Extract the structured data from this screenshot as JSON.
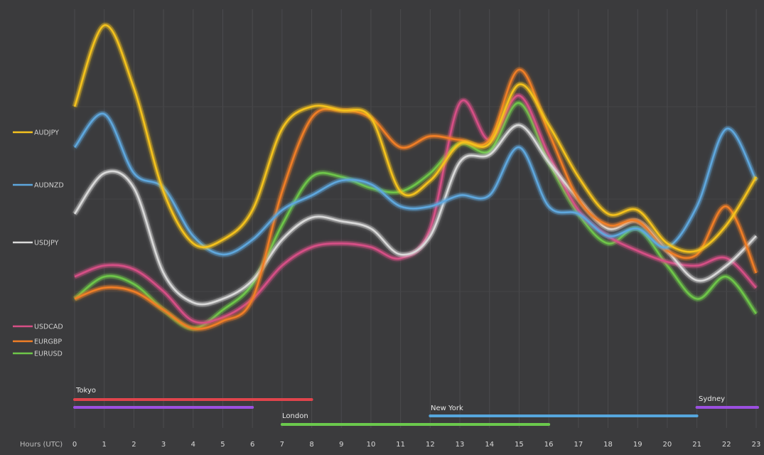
{
  "chart_data": {
    "type": "line",
    "x": [
      0,
      1,
      2,
      3,
      4,
      5,
      6,
      7,
      8,
      9,
      10,
      11,
      12,
      13,
      14,
      15,
      16,
      17,
      18,
      19,
      20,
      21,
      22,
      23
    ],
    "xlabel": "Hours (UTC)",
    "xlim": [
      0,
      23
    ],
    "ylim": [
      0,
      100
    ],
    "grid": "vertical",
    "legend_position": "left",
    "series": [
      {
        "name": "AUDJPY",
        "color": "#f4c21f",
        "values": [
          75,
          97,
          80,
          52,
          38,
          39,
          47,
          69,
          75,
          74,
          72,
          52,
          55,
          65,
          65,
          81,
          70,
          56,
          46,
          47,
          38,
          36,
          43,
          56
        ]
      },
      {
        "name": "AUDNZD",
        "color": "#5ea7dd",
        "values": [
          64,
          73,
          57,
          53,
          40,
          35,
          39,
          47,
          51,
          55,
          54,
          48,
          48,
          51,
          51,
          64,
          48,
          46,
          40,
          42,
          37,
          48,
          69,
          55
        ]
      },
      {
        "name": "USDJPY",
        "color": "#d9d9d9",
        "values": [
          46,
          57,
          53,
          30,
          22,
          23,
          28,
          39,
          45,
          44,
          42,
          35,
          40,
          60,
          62,
          70,
          60,
          50,
          42,
          44,
          36,
          28,
          32,
          40
        ]
      },
      {
        "name": "USDCAD",
        "color": "#d64f86",
        "values": [
          29,
          32,
          31,
          25,
          17,
          18,
          23,
          32,
          37,
          38,
          37,
          34,
          42,
          76,
          66,
          78,
          62,
          47,
          40,
          36,
          33,
          32,
          34,
          26
        ]
      },
      {
        "name": "EURGBP",
        "color": "#f07e26",
        "values": [
          23,
          26,
          25,
          20,
          15,
          17,
          23,
          52,
          72,
          74,
          72,
          64,
          67,
          66,
          66,
          85,
          68,
          50,
          43,
          44,
          36,
          35,
          48,
          30
        ]
      },
      {
        "name": "EURUSD",
        "color": "#6ec64a",
        "values": [
          23,
          29,
          27,
          20,
          15,
          20,
          27,
          43,
          56,
          56,
          53,
          52,
          57,
          65,
          63,
          76,
          60,
          46,
          38,
          42,
          32,
          23,
          29,
          19
        ]
      }
    ],
    "sessions": [
      {
        "name": "Tokyo",
        "start": 0,
        "end": 8,
        "color": "#e0444c",
        "labeled": true
      },
      {
        "name": "",
        "start": 0,
        "end": 6,
        "color": "#9b4fe0",
        "labeled": false
      },
      {
        "name": "London",
        "start": 7,
        "end": 16,
        "color": "#6bc94d",
        "labeled": true
      },
      {
        "name": "New York",
        "start": 12,
        "end": 21,
        "color": "#56a6dd",
        "labeled": true
      },
      {
        "name": "Sydney",
        "start": 21,
        "end": 23,
        "color": "#9b4fe0",
        "labeled": true
      }
    ]
  }
}
